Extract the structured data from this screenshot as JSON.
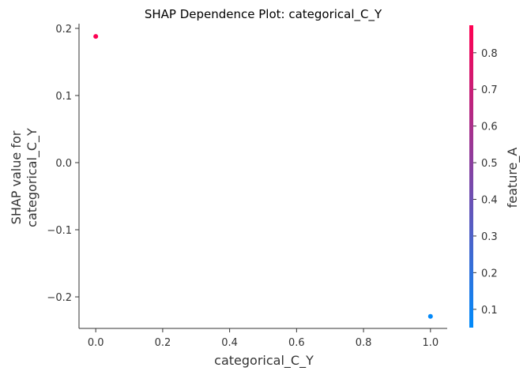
{
  "chart_data": {
    "type": "scatter",
    "title": "SHAP Dependence Plot: categorical_C_Y",
    "xlabel": "categorical_C_Y",
    "ylabel_lines": [
      "SHAP value for",
      "categorical_C_Y"
    ],
    "xlim": [
      -0.05,
      1.05
    ],
    "ylim": [
      -0.247,
      0.207
    ],
    "xticks": [
      0.0,
      0.2,
      0.4,
      0.6,
      0.8,
      1.0
    ],
    "xtick_labels": [
      "0.0",
      "0.2",
      "0.4",
      "0.6",
      "0.8",
      "1.0"
    ],
    "yticks": [
      0.2,
      0.1,
      0.0,
      -0.1,
      -0.2
    ],
    "ytick_labels": [
      "0.2",
      "0.1",
      "0.0",
      "−0.1",
      "−0.2"
    ],
    "grid": false,
    "points": [
      {
        "x": 0.0,
        "y": 0.188,
        "color_value": 0.87
      },
      {
        "x": 1.0,
        "y": -0.229,
        "color_value": 0.06
      }
    ],
    "colorbar": {
      "label": "feature_A",
      "range": [
        0.05,
        0.875
      ],
      "ticks": [
        0.1,
        0.2,
        0.3,
        0.4,
        0.5,
        0.6,
        0.7,
        0.8
      ],
      "tick_labels": [
        "0.1",
        "0.2",
        "0.3",
        "0.4",
        "0.5",
        "0.6",
        "0.7",
        "0.8"
      ],
      "color_low": "#008bfb",
      "color_high": "#ff0052"
    }
  }
}
